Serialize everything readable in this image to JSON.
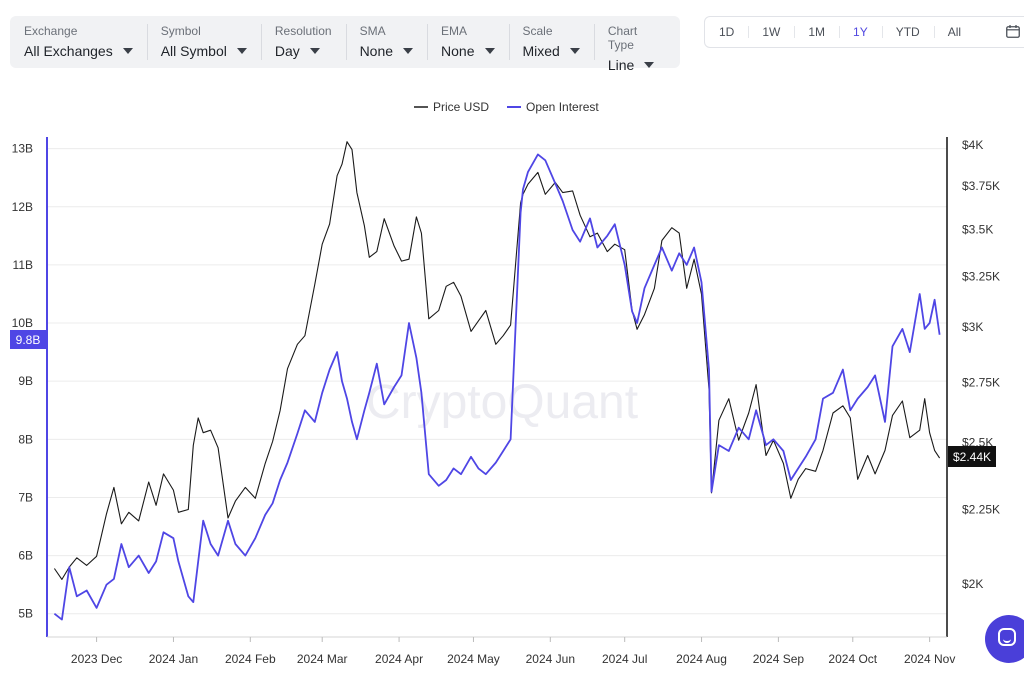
{
  "filters": [
    {
      "label": "Exchange",
      "value": "All Exchanges"
    },
    {
      "label": "Symbol",
      "value": "All Symbol"
    },
    {
      "label": "Resolution",
      "value": "Day"
    },
    {
      "label": "SMA",
      "value": "None"
    },
    {
      "label": "EMA",
      "value": "None"
    },
    {
      "label": "Scale",
      "value": "Mixed"
    },
    {
      "label": "Chart Type",
      "value": "Line"
    }
  ],
  "ranges": [
    "1D",
    "1W",
    "1M",
    "1Y",
    "YTD",
    "All"
  ],
  "active_range": "1Y",
  "watermark": "CryptoQuant",
  "colors": {
    "price": "#1a1a1a",
    "oi": "#4f46e5",
    "price_tag_bg": "#111111",
    "oi_tag_bg": "#4f46e5",
    "grid": "#ececec"
  },
  "chart_data": {
    "type": "line",
    "x_tick_labels": [
      "2023 Dec",
      "2024 Jan",
      "2024 Feb",
      "2024 Mar",
      "2024 Apr",
      "2024 May",
      "2024 Jun",
      "2024 Jul",
      "2024 Aug",
      "2024 Sep",
      "2024 Oct",
      "2024 Nov"
    ],
    "legend": [
      "Price USD",
      "Open Interest"
    ],
    "legend_position": "top-center",
    "grid": true,
    "left_axis": {
      "ticks": [
        "5B",
        "6B",
        "7B",
        "8B",
        "9B",
        "10B",
        "11B",
        "12B",
        "13B"
      ],
      "ylim": [
        4.6,
        13.2
      ]
    },
    "right_axis": {
      "ticks": [
        "$2K",
        "$2.25K",
        "$2.5K",
        "$2.75K",
        "$3K",
        "$3.25K",
        "$3.5K",
        "$3.75K",
        "$4K"
      ],
      "scale": "log",
      "ylim": [
        1840,
        4050
      ]
    },
    "current": {
      "oi_label": "9.8B",
      "price_label": "$2.44K"
    },
    "series": [
      {
        "name": "Price USD",
        "axis": "right",
        "x": [
          "2023-11-14",
          "2023-11-17",
          "2023-11-20",
          "2023-11-23",
          "2023-11-27",
          "2023-12-01",
          "2023-12-05",
          "2023-12-08",
          "2023-12-11",
          "2023-12-14",
          "2023-12-18",
          "2023-12-22",
          "2023-12-25",
          "2023-12-28",
          "2024-01-01",
          "2024-01-03",
          "2024-01-07",
          "2024-01-09",
          "2024-01-11",
          "2024-01-13",
          "2024-01-16",
          "2024-01-19",
          "2024-01-23",
          "2024-01-26",
          "2024-01-30",
          "2024-02-03",
          "2024-02-07",
          "2024-02-10",
          "2024-02-13",
          "2024-02-16",
          "2024-02-20",
          "2024-02-23",
          "2024-02-27",
          "2024-03-01",
          "2024-03-04",
          "2024-03-07",
          "2024-03-09",
          "2024-03-11",
          "2024-03-13",
          "2024-03-15",
          "2024-03-18",
          "2024-03-20",
          "2024-03-23",
          "2024-03-26",
          "2024-03-30",
          "2024-04-02",
          "2024-04-05",
          "2024-04-08",
          "2024-04-10",
          "2024-04-13",
          "2024-04-17",
          "2024-04-20",
          "2024-04-23",
          "2024-04-26",
          "2024-04-30",
          "2024-05-03",
          "2024-05-06",
          "2024-05-10",
          "2024-05-13",
          "2024-05-16",
          "2024-05-20",
          "2024-05-21",
          "2024-05-23",
          "2024-05-27",
          "2024-05-30",
          "2024-06-03",
          "2024-06-06",
          "2024-06-10",
          "2024-06-13",
          "2024-06-17",
          "2024-06-20",
          "2024-06-24",
          "2024-06-27",
          "2024-07-01",
          "2024-07-04",
          "2024-07-06",
          "2024-07-09",
          "2024-07-13",
          "2024-07-16",
          "2024-07-20",
          "2024-07-23",
          "2024-07-26",
          "2024-07-29",
          "2024-08-01",
          "2024-08-04",
          "2024-08-05",
          "2024-08-08",
          "2024-08-12",
          "2024-08-16",
          "2024-08-20",
          "2024-08-23",
          "2024-08-27",
          "2024-08-30",
          "2024-09-03",
          "2024-09-06",
          "2024-09-09",
          "2024-09-12",
          "2024-09-16",
          "2024-09-19",
          "2024-09-23",
          "2024-09-27",
          "2024-09-30",
          "2024-10-03",
          "2024-10-07",
          "2024-10-10",
          "2024-10-14",
          "2024-10-17",
          "2024-10-21",
          "2024-10-24",
          "2024-10-28",
          "2024-10-30",
          "2024-11-01",
          "2024-11-03",
          "2024-11-05"
        ],
        "values": [
          2050,
          2015,
          2055,
          2085,
          2060,
          2090,
          2235,
          2330,
          2200,
          2240,
          2210,
          2350,
          2265,
          2380,
          2320,
          2240,
          2250,
          2490,
          2600,
          2540,
          2550,
          2480,
          2220,
          2280,
          2330,
          2290,
          2420,
          2505,
          2630,
          2810,
          2920,
          2960,
          3210,
          3420,
          3530,
          3810,
          3880,
          4020,
          3970,
          3710,
          3520,
          3350,
          3380,
          3560,
          3410,
          3330,
          3340,
          3570,
          3480,
          3040,
          3080,
          3200,
          3220,
          3150,
          2980,
          3030,
          3080,
          2920,
          2960,
          3010,
          3650,
          3700,
          3760,
          3830,
          3700,
          3770,
          3710,
          3720,
          3580,
          3460,
          3480,
          3380,
          3420,
          3390,
          3080,
          2990,
          3060,
          3190,
          3440,
          3510,
          3480,
          3190,
          3340,
          3160,
          2720,
          2310,
          2590,
          2680,
          2510,
          2620,
          2740,
          2450,
          2510,
          2420,
          2290,
          2360,
          2400,
          2390,
          2470,
          2620,
          2650,
          2600,
          2360,
          2450,
          2380,
          2470,
          2610,
          2670,
          2520,
          2550,
          2680,
          2540,
          2470,
          2440
        ]
      },
      {
        "name": "Open Interest",
        "axis": "left",
        "x": [
          "2023-11-14",
          "2023-11-17",
          "2023-11-20",
          "2023-11-23",
          "2023-11-27",
          "2023-12-01",
          "2023-12-05",
          "2023-12-08",
          "2023-12-11",
          "2023-12-14",
          "2023-12-18",
          "2023-12-22",
          "2023-12-25",
          "2023-12-28",
          "2024-01-01",
          "2024-01-03",
          "2024-01-07",
          "2024-01-09",
          "2024-01-11",
          "2024-01-13",
          "2024-01-16",
          "2024-01-19",
          "2024-01-23",
          "2024-01-26",
          "2024-01-30",
          "2024-02-03",
          "2024-02-07",
          "2024-02-10",
          "2024-02-13",
          "2024-02-16",
          "2024-02-20",
          "2024-02-23",
          "2024-02-27",
          "2024-03-01",
          "2024-03-04",
          "2024-03-07",
          "2024-03-09",
          "2024-03-11",
          "2024-03-13",
          "2024-03-15",
          "2024-03-18",
          "2024-03-20",
          "2024-03-23",
          "2024-03-26",
          "2024-03-30",
          "2024-04-02",
          "2024-04-05",
          "2024-04-08",
          "2024-04-10",
          "2024-04-13",
          "2024-04-17",
          "2024-04-20",
          "2024-04-23",
          "2024-04-26",
          "2024-04-30",
          "2024-05-03",
          "2024-05-06",
          "2024-05-10",
          "2024-05-13",
          "2024-05-16",
          "2024-05-20",
          "2024-05-21",
          "2024-05-23",
          "2024-05-27",
          "2024-05-30",
          "2024-06-03",
          "2024-06-06",
          "2024-06-10",
          "2024-06-13",
          "2024-06-17",
          "2024-06-20",
          "2024-06-24",
          "2024-06-27",
          "2024-07-01",
          "2024-07-04",
          "2024-07-06",
          "2024-07-09",
          "2024-07-13",
          "2024-07-16",
          "2024-07-20",
          "2024-07-23",
          "2024-07-26",
          "2024-07-29",
          "2024-08-01",
          "2024-08-04",
          "2024-08-05",
          "2024-08-08",
          "2024-08-12",
          "2024-08-16",
          "2024-08-20",
          "2024-08-23",
          "2024-08-27",
          "2024-08-30",
          "2024-09-03",
          "2024-09-06",
          "2024-09-09",
          "2024-09-12",
          "2024-09-16",
          "2024-09-19",
          "2024-09-23",
          "2024-09-27",
          "2024-09-30",
          "2024-10-03",
          "2024-10-07",
          "2024-10-10",
          "2024-10-14",
          "2024-10-17",
          "2024-10-21",
          "2024-10-24",
          "2024-10-28",
          "2024-10-30",
          "2024-11-01",
          "2024-11-03",
          "2024-11-05"
        ],
        "values": [
          5.0,
          4.9,
          5.8,
          5.3,
          5.4,
          5.1,
          5.5,
          5.6,
          6.2,
          5.8,
          6.0,
          5.7,
          5.9,
          6.4,
          6.3,
          5.9,
          5.3,
          5.2,
          5.9,
          6.6,
          6.2,
          6.0,
          6.6,
          6.2,
          6.0,
          6.3,
          6.7,
          6.9,
          7.3,
          7.6,
          8.1,
          8.5,
          8.3,
          8.8,
          9.2,
          9.5,
          9.0,
          8.7,
          8.3,
          8.0,
          8.5,
          8.8,
          9.3,
          8.6,
          8.9,
          9.1,
          10.0,
          9.4,
          8.8,
          7.4,
          7.2,
          7.3,
          7.5,
          7.4,
          7.7,
          7.5,
          7.4,
          7.6,
          7.8,
          8.0,
          11.9,
          12.3,
          12.6,
          12.9,
          12.8,
          12.4,
          12.1,
          11.6,
          11.4,
          11.8,
          11.3,
          11.5,
          11.7,
          11.0,
          10.2,
          10.0,
          10.6,
          11.0,
          11.3,
          10.9,
          11.2,
          11.0,
          11.3,
          10.7,
          9.2,
          7.1,
          7.9,
          7.8,
          8.2,
          8.0,
          8.5,
          7.9,
          8.0,
          7.8,
          7.3,
          7.5,
          7.7,
          8.0,
          8.7,
          8.8,
          9.2,
          8.5,
          8.7,
          8.9,
          9.1,
          8.3,
          9.6,
          9.9,
          9.5,
          10.5,
          9.9,
          10.0,
          10.4,
          9.8
        ]
      }
    ]
  }
}
